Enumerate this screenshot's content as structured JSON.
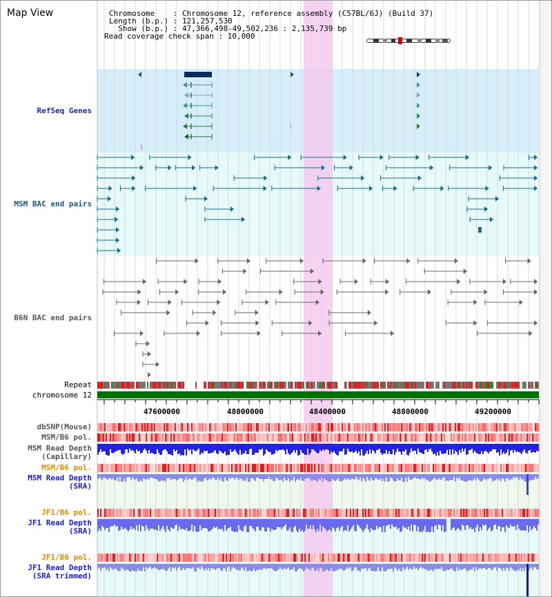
{
  "title": "Map View",
  "info": {
    "chromosome": "Chromosome    : Chromosome 12, reference assembly (C57BL/6J) (Build 37)",
    "length": "Length (b.p.) : 121,257,530",
    "show": "  Show (b.p.) : 47,366,498-49,502,236 : 2,135,739 bp",
    "coverage": "Read coverage check span : 10,000"
  },
  "tracks": {
    "refseq": "RefSeq Genes",
    "msm_bac": "MSM BAC end pairs",
    "b6n_bac": "B6N BAC end pairs",
    "repeat": "Repeat",
    "chromosome": "chromosome 12",
    "dbsnp": "dbSNP(Mouse)",
    "msm_b6_pol": "MSM/B6 pol.",
    "msm_depth_cap_1": "MSM Read Depth",
    "msm_depth_cap_2": "(Capillary)",
    "msm_b6_pol_2": "MSM/B6 pol.",
    "msm_depth_sra_1": "MSM Read Depth",
    "msm_depth_sra_2": "(SRA)",
    "jf1_b6_pol": "JF1/B6 pol.",
    "jf1_depth_sra_1": "JF1 Read Depth",
    "jf1_depth_sra_2": "(SRA)",
    "jf1_b6_pol_2": "JF1/B6 pol.",
    "jf1_depth_trim_1": "JF1 Read Depth",
    "jf1_depth_trim_2": "(SRA trimmed)"
  },
  "axis_ticks": [
    "47600000",
    "48000000",
    "48400000",
    "48800000",
    "49200000"
  ],
  "colors": {
    "refseq_bg": "#d6eefa",
    "msm_bg": "#e6fafa",
    "light_bg": "#eef8ee",
    "highlight": "#f5c8ef",
    "chromosome_bar": "#007000",
    "depth_blue": "#2323e6",
    "depth_light": "#8a8af0"
  }
}
